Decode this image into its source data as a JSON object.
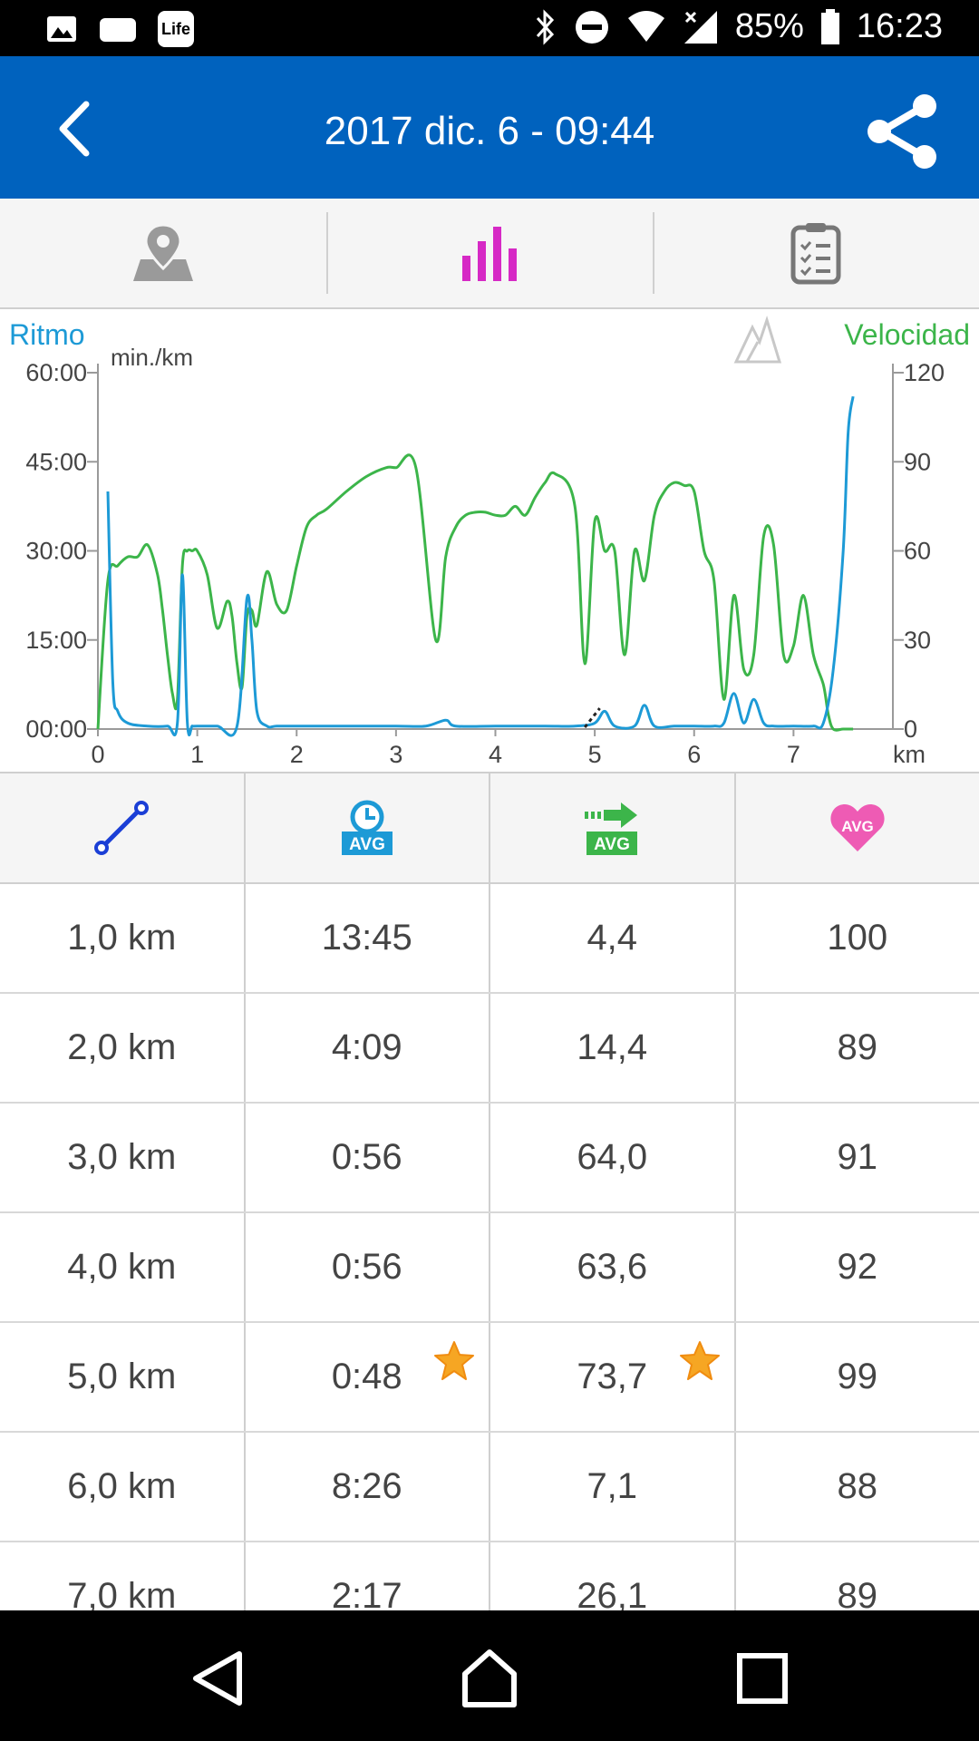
{
  "status_bar": {
    "battery": "85%",
    "time": "16:23",
    "app_badge": "Life"
  },
  "app_bar": {
    "title": "2017 dic. 6 - 09:44"
  },
  "tabs": [
    "map-tab",
    "chart-tab",
    "summary-tab"
  ],
  "chart": {
    "left_label": "Ritmo",
    "right_label": "Velocidad",
    "left_unit": "min./km",
    "x_unit": "km",
    "colors": {
      "pace": "#1d9ad6",
      "speed": "#3cb54a",
      "tab_active": "#d629c5",
      "header": "#0062be"
    }
  },
  "chart_data": {
    "type": "line",
    "x_label": "km",
    "xlim": [
      0,
      8
    ],
    "x_ticks": [
      "0",
      "1",
      "2",
      "3",
      "4",
      "5",
      "6",
      "7"
    ],
    "y_left_label": "min./km",
    "y_left_ticks": [
      "60:00",
      "45:00",
      "30:00",
      "15:00",
      "00:00"
    ],
    "y_left_lim": [
      0,
      60
    ],
    "y_right_ticks": [
      "120",
      "90",
      "60",
      "30",
      "0"
    ],
    "y_right_lim": [
      0,
      120
    ],
    "series": [
      {
        "axis": "right",
        "x": [
          0,
          0.1,
          0.2,
          0.3,
          0.4,
          0.5,
          0.6,
          0.65,
          0.7,
          0.75,
          0.8,
          0.85,
          0.9,
          0.95,
          1.0,
          1.1,
          1.2,
          1.3,
          1.35,
          1.4,
          1.45,
          1.5,
          1.55,
          1.6,
          1.7,
          1.8,
          1.9,
          2.0,
          2.1,
          2.2,
          2.3,
          2.5,
          2.7,
          2.9,
          3.0,
          3.2,
          3.4,
          3.5,
          3.6,
          3.7,
          3.8,
          3.9,
          4.0,
          4.1,
          4.2,
          4.3,
          4.4,
          4.5,
          4.6,
          4.8,
          4.9,
          5.0,
          5.1,
          5.2,
          5.3,
          5.4,
          5.5,
          5.6,
          5.7,
          5.8,
          5.9,
          6.0,
          6.1,
          6.2,
          6.3,
          6.4,
          6.5,
          6.6,
          6.7,
          6.8,
          6.9,
          7.0,
          7.1,
          7.2,
          7.3,
          7.35,
          7.4,
          7.5,
          7.6
        ],
        "y": [
          0,
          50,
          55,
          58,
          58,
          62,
          52,
          40,
          25,
          12,
          10,
          55,
          60,
          60,
          60,
          52,
          34,
          43,
          38,
          22,
          14,
          38,
          40,
          35,
          53,
          42,
          40,
          55,
          68,
          72,
          74,
          80,
          85,
          88,
          88,
          88,
          30,
          58,
          68,
          72,
          73,
          73,
          72,
          72,
          75,
          72,
          78,
          83,
          86,
          75,
          22,
          70,
          60,
          60,
          25,
          60,
          50,
          72,
          80,
          83,
          82,
          80,
          60,
          50,
          10,
          45,
          20,
          25,
          65,
          62,
          25,
          28,
          45,
          25,
          15,
          5,
          0,
          0,
          0
        ],
        "name": "Velocidad"
      },
      {
        "axis": "left",
        "x": [
          0.1,
          0.15,
          0.2,
          0.3,
          0.5,
          0.7,
          0.8,
          0.85,
          0.9,
          0.95,
          1.0,
          1.2,
          1.4,
          1.5,
          1.55,
          1.6,
          1.7,
          1.8,
          2.0,
          2.5,
          3.0,
          3.3,
          3.5,
          3.6,
          4.0,
          4.5,
          4.8,
          5.0,
          5.1,
          5.2,
          5.4,
          5.5,
          5.6,
          5.8,
          6.0,
          6.2,
          6.3,
          6.4,
          6.5,
          6.6,
          6.7,
          6.8,
          7.0,
          7.2,
          7.3,
          7.4,
          7.5,
          7.55,
          7.6
        ],
        "y": [
          40,
          8,
          3,
          1,
          0.5,
          0.5,
          1,
          26,
          1,
          0.5,
          0.5,
          0.5,
          0.5,
          22,
          15,
          3,
          0.5,
          0.5,
          0.5,
          0.5,
          0.5,
          0.5,
          1.5,
          0.5,
          0.5,
          0.5,
          0.5,
          1,
          3,
          0.5,
          0.5,
          4,
          0.5,
          0.5,
          0.5,
          0.5,
          1,
          6,
          1,
          5,
          1,
          0.5,
          0.5,
          0.5,
          1,
          10,
          30,
          50,
          56
        ],
        "name": "Ritmo"
      }
    ]
  },
  "table": {
    "header_icons": [
      "distance-icon",
      "avg-time-icon",
      "avg-speed-icon",
      "avg-heart-rate-icon"
    ],
    "rows": [
      {
        "distance": "1,0 km",
        "time": "13:45",
        "speed": "4,4",
        "hr": "100",
        "time_star": false,
        "speed_star": false
      },
      {
        "distance": "2,0 km",
        "time": "4:09",
        "speed": "14,4",
        "hr": "89",
        "time_star": false,
        "speed_star": false
      },
      {
        "distance": "3,0 km",
        "time": "0:56",
        "speed": "64,0",
        "hr": "91",
        "time_star": false,
        "speed_star": false
      },
      {
        "distance": "4,0 km",
        "time": "0:56",
        "speed": "63,6",
        "hr": "92",
        "time_star": false,
        "speed_star": false
      },
      {
        "distance": "5,0 km",
        "time": "0:48",
        "speed": "73,7",
        "hr": "99",
        "time_star": true,
        "speed_star": true
      },
      {
        "distance": "6,0 km",
        "time": "8:26",
        "speed": "7,1",
        "hr": "88",
        "time_star": false,
        "speed_star": false
      },
      {
        "distance": "7,0 km",
        "time": "2:17",
        "speed": "26,1",
        "hr": "89",
        "time_star": false,
        "speed_star": false
      }
    ]
  },
  "nav_bar": [
    "back-nav-icon",
    "home-nav-icon",
    "recents-nav-icon"
  ]
}
